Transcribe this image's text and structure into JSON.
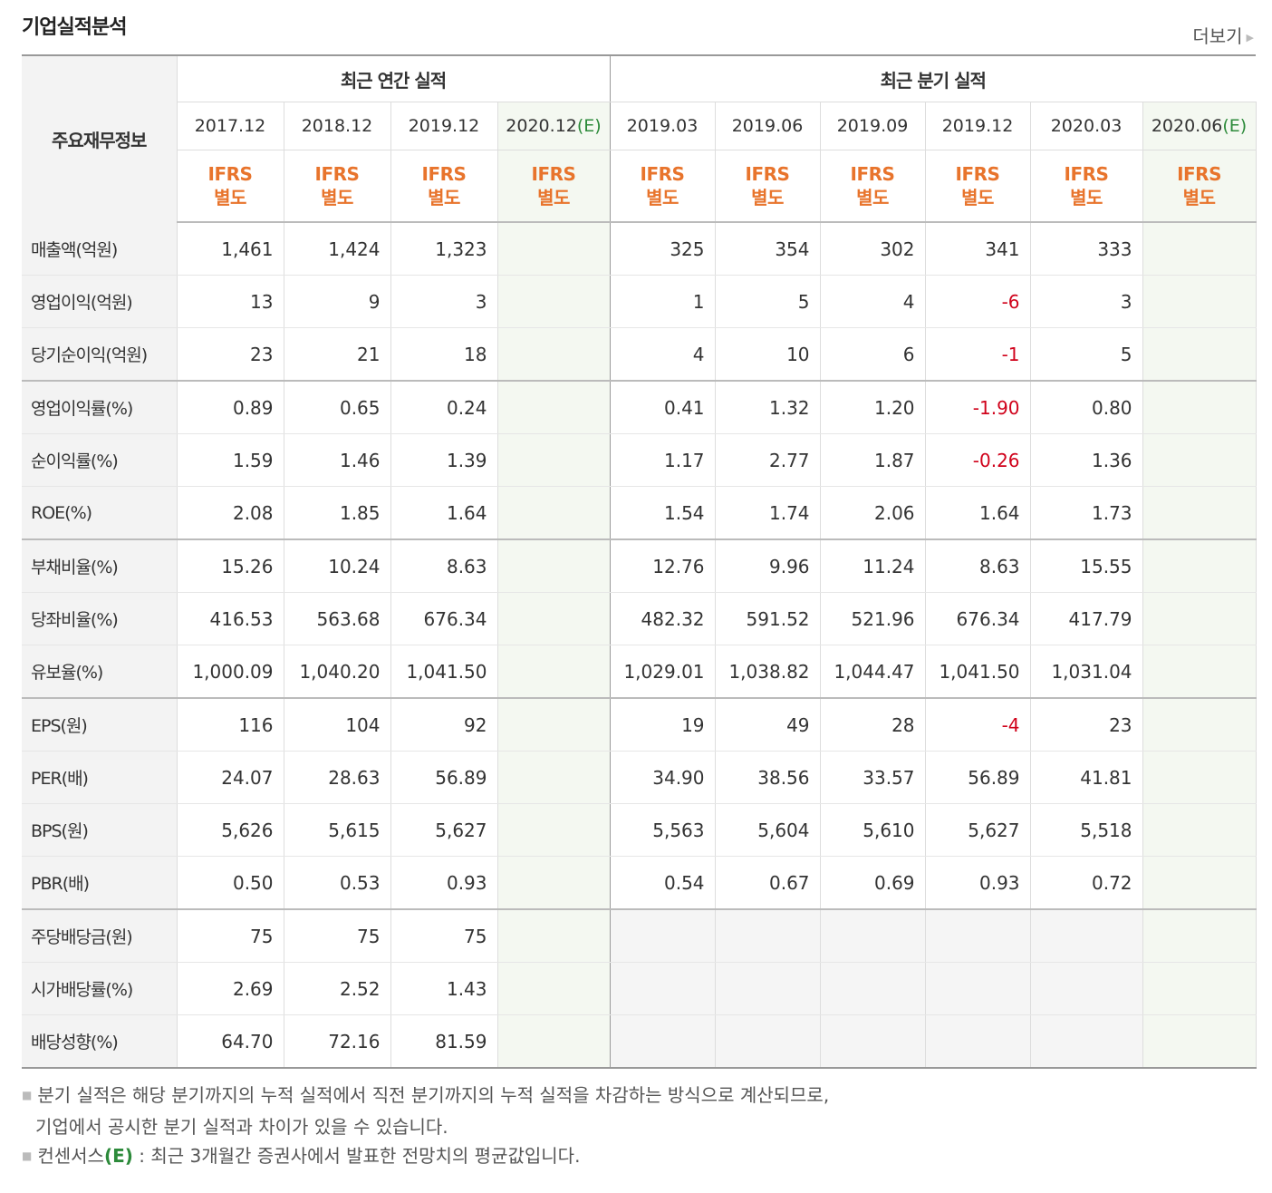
{
  "section_title": "기업실적분석",
  "more_label": "더보기",
  "header": {
    "category": "주요재무정보",
    "annual_group": "최근 연간 실적",
    "quarterly_group": "최근 분기 실적",
    "periods": [
      {
        "label": "2017.12"
      },
      {
        "label": "2018.12"
      },
      {
        "label": "2019.12"
      },
      {
        "label": "2020.12",
        "suffix": "(E)"
      },
      {
        "label": "2019.03"
      },
      {
        "label": "2019.06"
      },
      {
        "label": "2019.09"
      },
      {
        "label": "2019.12"
      },
      {
        "label": "2020.03"
      },
      {
        "label": "2020.06",
        "suffix": "(E)"
      }
    ],
    "standard_top": "IFRS",
    "standard_bottom": "별도"
  },
  "rows": [
    {
      "label": "매출액(억원)",
      "values": [
        "1,461",
        "1,424",
        "1,323",
        "",
        "325",
        "354",
        "302",
        "341",
        "333",
        ""
      ]
    },
    {
      "label": "영업이익(억원)",
      "values": [
        "13",
        "9",
        "3",
        "",
        "1",
        "5",
        "4",
        "-6",
        "3",
        ""
      ]
    },
    {
      "label": "당기순이익(억원)",
      "values": [
        "23",
        "21",
        "18",
        "",
        "4",
        "10",
        "6",
        "-1",
        "5",
        ""
      ]
    },
    {
      "label": "영업이익률(%)",
      "values": [
        "0.89",
        "0.65",
        "0.24",
        "",
        "0.41",
        "1.32",
        "1.20",
        "-1.90",
        "0.80",
        ""
      ]
    },
    {
      "label": "순이익률(%)",
      "values": [
        "1.59",
        "1.46",
        "1.39",
        "",
        "1.17",
        "2.77",
        "1.87",
        "-0.26",
        "1.36",
        ""
      ]
    },
    {
      "label": "ROE(%)",
      "values": [
        "2.08",
        "1.85",
        "1.64",
        "",
        "1.54",
        "1.74",
        "2.06",
        "1.64",
        "1.73",
        ""
      ]
    },
    {
      "label": "부채비율(%)",
      "values": [
        "15.26",
        "10.24",
        "8.63",
        "",
        "12.76",
        "9.96",
        "11.24",
        "8.63",
        "15.55",
        ""
      ]
    },
    {
      "label": "당좌비율(%)",
      "values": [
        "416.53",
        "563.68",
        "676.34",
        "",
        "482.32",
        "591.52",
        "521.96",
        "676.34",
        "417.79",
        ""
      ]
    },
    {
      "label": "유보율(%)",
      "values": [
        "1,000.09",
        "1,040.20",
        "1,041.50",
        "",
        "1,029.01",
        "1,038.82",
        "1,044.47",
        "1,041.50",
        "1,031.04",
        ""
      ]
    },
    {
      "label": "EPS(원)",
      "values": [
        "116",
        "104",
        "92",
        "",
        "19",
        "49",
        "28",
        "-4",
        "23",
        ""
      ]
    },
    {
      "label": "PER(배)",
      "values": [
        "24.07",
        "28.63",
        "56.89",
        "",
        "34.90",
        "38.56",
        "33.57",
        "56.89",
        "41.81",
        ""
      ]
    },
    {
      "label": "BPS(원)",
      "values": [
        "5,626",
        "5,615",
        "5,627",
        "",
        "5,563",
        "5,604",
        "5,610",
        "5,627",
        "5,518",
        ""
      ]
    },
    {
      "label": "PBR(배)",
      "values": [
        "0.50",
        "0.53",
        "0.93",
        "",
        "0.54",
        "0.67",
        "0.69",
        "0.93",
        "0.72",
        ""
      ]
    },
    {
      "label": "주당배당금(원)",
      "values": [
        "75",
        "75",
        "75",
        "",
        "",
        "",
        "",
        "",
        "",
        ""
      ]
    },
    {
      "label": "시가배당률(%)",
      "values": [
        "2.69",
        "2.52",
        "1.43",
        "",
        "",
        "",
        "",
        "",
        "",
        ""
      ]
    },
    {
      "label": "배당성향(%)",
      "values": [
        "64.70",
        "72.16",
        "81.59",
        "",
        "",
        "",
        "",
        "",
        "",
        ""
      ]
    }
  ],
  "notes": {
    "note1_line1": "분기 실적은 해당 분기까지의 누적 실적에서 직전 분기까지의 누적 실적을 차감하는 방식으로 계산되므로,",
    "note1_line2": "기업에서 공시한 분기 실적과 차이가 있을 수 있습니다.",
    "note2_prefix": "컨센서스",
    "note2_mark": "(E)",
    "note2_text": " : 최근 3개월간 증권사에서 발표한 전망치의 평균값입니다."
  },
  "colors": {
    "negative": "#d0021b",
    "ifrs": "#e8742c",
    "estimate": "#2c8a3a",
    "estimate_bg": "#f4f8f1"
  }
}
